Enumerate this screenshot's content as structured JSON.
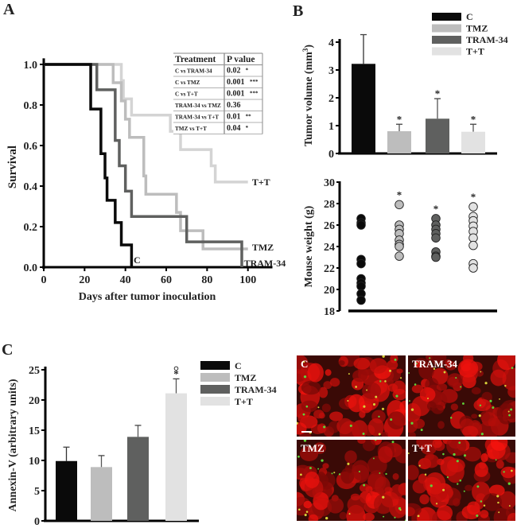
{
  "colors": {
    "C": "#0a0a0a",
    "TMZ": "#bdbdbd",
    "TRAM-34": "#5f605f",
    "T+T": "#e2e2e2"
  },
  "chart_data": [
    {
      "panel": "A",
      "type": "line",
      "subtype": "kaplan-meier",
      "xlabel": "Days after tumor inoculation",
      "ylabel": "Survival",
      "xlim": [
        0,
        112
      ],
      "ylim": [
        0,
        1.0
      ],
      "xticks": [
        0,
        20,
        40,
        60,
        80,
        100
      ],
      "yticks": [
        "0.0",
        "0.2",
        "0.4",
        "0.6",
        "0.8",
        "1.0"
      ],
      "series": [
        {
          "name": "C",
          "label": "C",
          "steps": [
            [
              0,
              1.0
            ],
            [
              23,
              0.78
            ],
            [
              28,
              0.56
            ],
            [
              30,
              0.44
            ],
            [
              31,
              0.33
            ],
            [
              35,
              0.22
            ],
            [
              38,
              0.11
            ],
            [
              43,
              0.0
            ]
          ]
        },
        {
          "name": "TRAM-34",
          "label": "TRAM-34",
          "steps": [
            [
              0,
              1.0
            ],
            [
              26,
              0.875
            ],
            [
              35,
              0.625
            ],
            [
              37,
              0.5
            ],
            [
              40,
              0.375
            ],
            [
              43,
              0.25
            ],
            [
              70,
              0.125
            ],
            [
              97,
              0.0
            ]
          ]
        },
        {
          "name": "TMZ",
          "label": "TMZ",
          "steps": [
            [
              0,
              1.0
            ],
            [
              34,
              0.91
            ],
            [
              38,
              0.82
            ],
            [
              40,
              0.73
            ],
            [
              42,
              0.64
            ],
            [
              49,
              0.45
            ],
            [
              50,
              0.36
            ],
            [
              65,
              0.27
            ],
            [
              67,
              0.18
            ],
            [
              78,
              0.09
            ],
            [
              100,
              0.09
            ]
          ]
        },
        {
          "name": "T+T",
          "label": "T+T",
          "steps": [
            [
              0,
              1.0
            ],
            [
              38,
              0.92
            ],
            [
              39,
              0.83
            ],
            [
              43,
              0.75
            ],
            [
              62,
              0.67
            ],
            [
              67,
              0.58
            ],
            [
              82,
              0.5
            ],
            [
              84,
              0.42
            ],
            [
              100,
              0.42
            ]
          ]
        }
      ],
      "table": {
        "headers": [
          "Treatment",
          "P value"
        ],
        "rows": [
          [
            "C vs TRAM-34",
            "0.02",
            "*"
          ],
          [
            "C vs TMZ",
            "0.001",
            "***"
          ],
          [
            "C vs T+T",
            "0.001",
            "***"
          ],
          [
            "TRAM-34 vs TMZ",
            "0.36",
            ""
          ],
          [
            "TRAM-34 vs T+T",
            "0.01",
            "**"
          ],
          [
            "TMZ vs T+T",
            "0.04",
            "*"
          ]
        ]
      }
    },
    {
      "panel": "B",
      "type": "bar",
      "ylabel": "Tumor volume (mm",
      "ylabel_sup": "3",
      "ylabel_end": ")",
      "ylim": [
        0,
        4.2
      ],
      "yticks": [
        0,
        1,
        2,
        3,
        4
      ],
      "categories": [
        "C",
        "TMZ",
        "TRAM-34",
        "T+T"
      ],
      "values": [
        3.22,
        0.8,
        1.25,
        0.78
      ],
      "errors": [
        1.05,
        0.25,
        0.72,
        0.27
      ],
      "annotations": [
        "",
        "*",
        "*",
        "*"
      ],
      "legend": [
        "C",
        "TMZ",
        "TRAM-34",
        "T+T"
      ]
    },
    {
      "panel": "B-lower",
      "type": "scatter",
      "ylabel": "Mouse weight (g)",
      "ylim": [
        18,
        30
      ],
      "yticks": [
        18,
        20,
        22,
        24,
        26,
        28,
        30
      ],
      "categories": [
        "C",
        "TMZ",
        "TRAM-34",
        "T+T"
      ],
      "series": [
        {
          "name": "C",
          "values": [
            26.6,
            26.2,
            26.0,
            22.8,
            22.4,
            21.0,
            20.6,
            20.3,
            19.6,
            19.0
          ]
        },
        {
          "name": "TMZ",
          "values": [
            27.9,
            26.0,
            25.6,
            25.2,
            24.6,
            24.2,
            24.0,
            23.1
          ]
        },
        {
          "name": "TRAM-34",
          "values": [
            26.6,
            26.0,
            25.6,
            25.2,
            24.8,
            23.5,
            23.1,
            23.0
          ]
        },
        {
          "name": "T+T",
          "values": [
            27.7,
            26.8,
            26.4,
            25.9,
            25.4,
            24.8,
            24.1,
            22.4,
            22.0
          ]
        }
      ],
      "annotations": [
        "",
        "*",
        "*",
        "*"
      ]
    },
    {
      "panel": "C",
      "type": "bar",
      "ylabel": "Annexin-V (arbitrary units)",
      "ylim": [
        0,
        25
      ],
      "yticks": [
        0,
        5,
        10,
        15,
        20,
        25
      ],
      "categories": [
        "C",
        "TMZ",
        "TRAM-34",
        "T+T"
      ],
      "values": [
        9.9,
        8.9,
        13.9,
        21.1
      ],
      "errors": [
        2.3,
        1.9,
        1.9,
        2.4
      ],
      "annotations": [
        "",
        "",
        "",
        "*°"
      ],
      "legend": [
        "C",
        "TMZ",
        "TRAM-34",
        "T+T"
      ]
    }
  ],
  "panel_labels": [
    "A",
    "B",
    "C"
  ],
  "micrographs": {
    "labels": [
      "C",
      "TRAM-34",
      "TMZ",
      "T+T"
    ]
  }
}
